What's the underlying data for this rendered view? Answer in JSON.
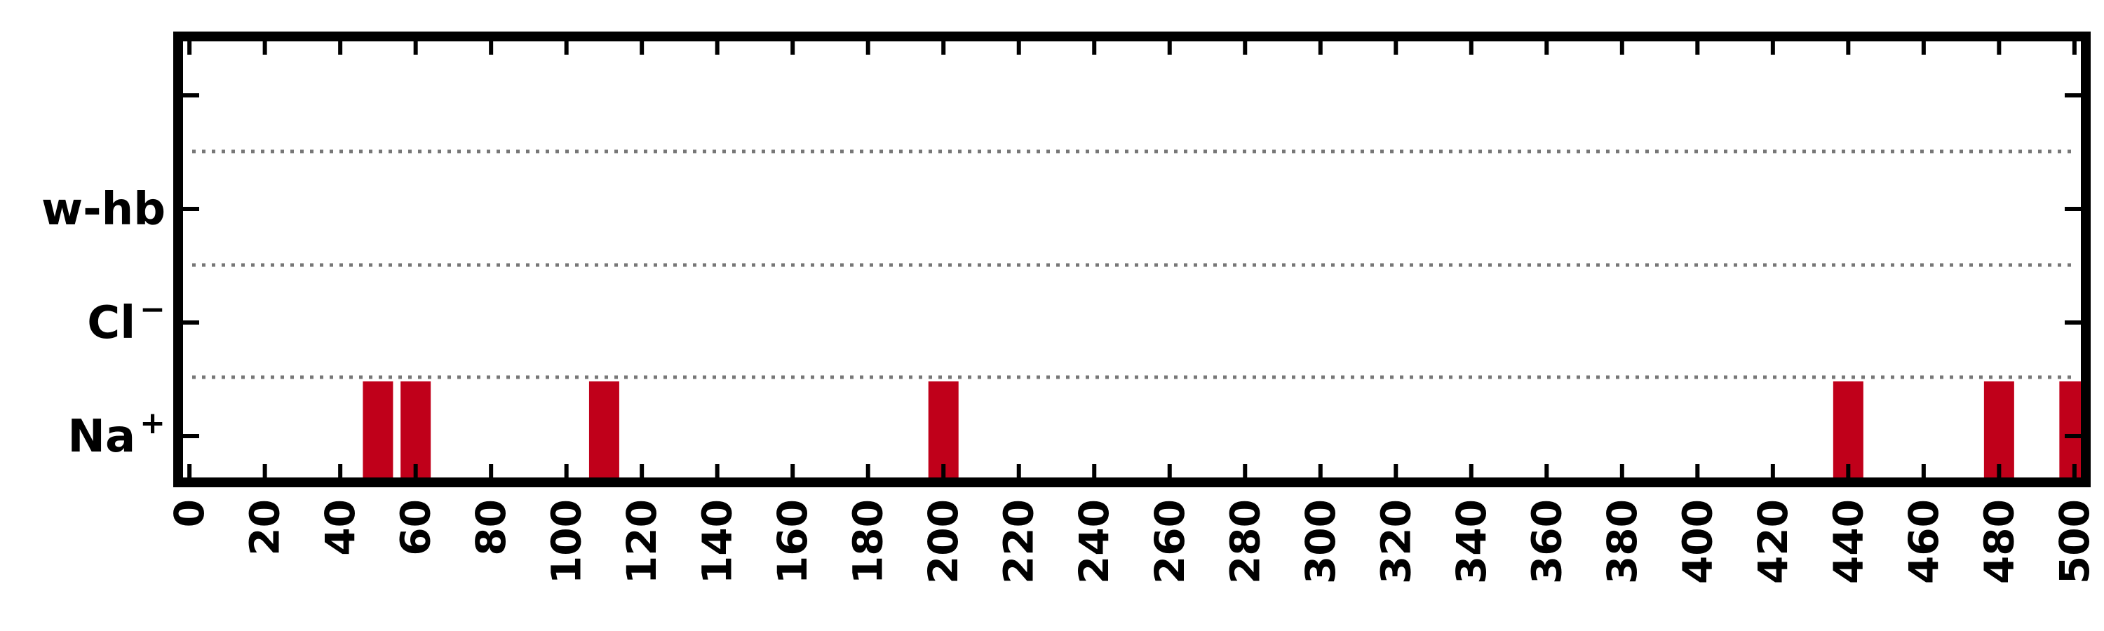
{
  "chart_data": {
    "type": "bar",
    "orientation": "event-strip",
    "title": "",
    "xlabel": "",
    "ylabel": "",
    "xlim": [
      -3,
      503
    ],
    "x_ticks": [
      0,
      20,
      40,
      60,
      80,
      100,
      120,
      140,
      160,
      180,
      200,
      220,
      240,
      260,
      280,
      300,
      320,
      340,
      360,
      380,
      400,
      420,
      440,
      460,
      480,
      500
    ],
    "x_tick_labels": [
      "0",
      "20",
      "40",
      "60",
      "80",
      "100",
      "120",
      "140",
      "160",
      "180",
      "200",
      "220",
      "240",
      "260",
      "280",
      "300",
      "320",
      "340",
      "360",
      "380",
      "400",
      "420",
      "440",
      "460",
      "480",
      "500"
    ],
    "categories": [
      "Na⁺",
      "Cl⁻",
      "w-hb"
    ],
    "y_tick_labels": [
      {
        "base": "Na",
        "sup": "+"
      },
      {
        "base": "Cl",
        "sup": "−"
      },
      {
        "base": "w-hb",
        "sup": ""
      }
    ],
    "grid": {
      "horizontal_dotted": true,
      "color": "#777777"
    },
    "series": [
      {
        "category": "Na⁺",
        "color": "#c0001a",
        "events": [
          {
            "start": 46,
            "end": 54
          },
          {
            "start": 56,
            "end": 64
          },
          {
            "start": 106,
            "end": 114
          },
          {
            "start": 196,
            "end": 204
          },
          {
            "start": 436,
            "end": 444
          },
          {
            "start": 476,
            "end": 484
          },
          {
            "start": 496,
            "end": 504
          }
        ]
      },
      {
        "category": "Cl⁻",
        "color": "#c0001a",
        "events": []
      },
      {
        "category": "w-hb",
        "color": "#c0001a",
        "events": []
      }
    ],
    "legend": "none"
  }
}
